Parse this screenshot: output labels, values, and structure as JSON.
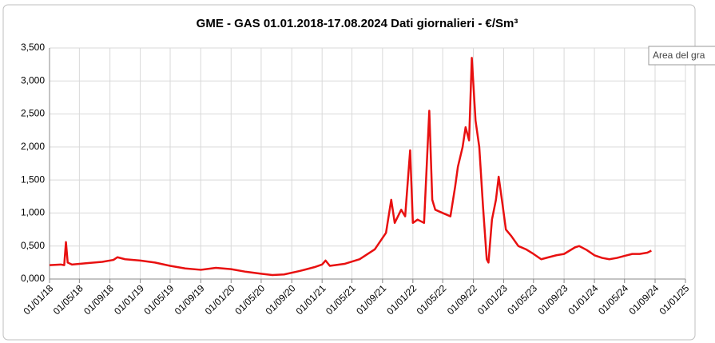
{
  "chart_data": {
    "type": "line",
    "title": "GME - GAS 01.01.2018-17.08.2024 Dati giornalieri - €/Sm³",
    "tooltip": "Area del gra",
    "color": "#e81010",
    "grid": true,
    "x": [
      "2018-01-01",
      "2018-02-15",
      "2018-03-01",
      "2018-03-08",
      "2018-03-15",
      "2018-04-01",
      "2018-06-01",
      "2018-08-01",
      "2018-09-15",
      "2018-10-01",
      "2018-11-01",
      "2019-01-01",
      "2019-03-01",
      "2019-05-01",
      "2019-07-01",
      "2019-09-01",
      "2019-11-01",
      "2020-01-01",
      "2020-03-01",
      "2020-05-01",
      "2020-06-15",
      "2020-08-01",
      "2020-10-01",
      "2020-12-01",
      "2021-01-01",
      "2021-01-15",
      "2021-02-01",
      "2021-04-01",
      "2021-06-01",
      "2021-08-01",
      "2021-09-15",
      "2021-10-06",
      "2021-10-20",
      "2021-11-15",
      "2021-12-01",
      "2021-12-21",
      "2022-01-01",
      "2022-01-20",
      "2022-02-15",
      "2022-03-08",
      "2022-03-20",
      "2022-04-01",
      "2022-05-01",
      "2022-06-01",
      "2022-06-20",
      "2022-07-01",
      "2022-07-20",
      "2022-08-01",
      "2022-08-15",
      "2022-08-26",
      "2022-09-10",
      "2022-09-25",
      "2022-10-10",
      "2022-10-25",
      "2022-11-01",
      "2022-11-15",
      "2022-12-01",
      "2022-12-12",
      "2022-12-25",
      "2023-01-10",
      "2023-02-01",
      "2023-03-01",
      "2023-04-01",
      "2023-05-01",
      "2023-06-01",
      "2023-07-01",
      "2023-08-01",
      "2023-09-01",
      "2023-10-15",
      "2023-11-01",
      "2023-12-01",
      "2024-01-01",
      "2024-02-01",
      "2024-03-01",
      "2024-04-01",
      "2024-05-01",
      "2024-06-01",
      "2024-07-01",
      "2024-08-01",
      "2024-08-17"
    ],
    "values": [
      0.21,
      0.22,
      0.21,
      0.56,
      0.25,
      0.22,
      0.24,
      0.26,
      0.29,
      0.33,
      0.3,
      0.28,
      0.25,
      0.2,
      0.16,
      0.14,
      0.17,
      0.15,
      0.11,
      0.08,
      0.06,
      0.07,
      0.12,
      0.18,
      0.22,
      0.28,
      0.2,
      0.23,
      0.3,
      0.45,
      0.7,
      1.2,
      0.85,
      1.05,
      0.95,
      1.95,
      0.85,
      0.9,
      0.85,
      2.55,
      1.2,
      1.05,
      1.0,
      0.95,
      1.4,
      1.7,
      2.0,
      2.3,
      2.1,
      3.35,
      2.4,
      2.0,
      1.1,
      0.3,
      0.25,
      0.9,
      1.2,
      1.55,
      1.2,
      0.75,
      0.65,
      0.5,
      0.45,
      0.38,
      0.3,
      0.33,
      0.36,
      0.38,
      0.48,
      0.5,
      0.44,
      0.36,
      0.32,
      0.3,
      0.32,
      0.35,
      0.38,
      0.38,
      0.4,
      0.43
    ],
    "ylim": [
      0,
      3.5
    ],
    "yticks": [
      {
        "value": 0,
        "label": "0,000"
      },
      {
        "value": 0.5,
        "label": "0,500"
      },
      {
        "value": 1,
        "label": "1,000"
      },
      {
        "value": 1.5,
        "label": "1,500"
      },
      {
        "value": 2,
        "label": "2,000"
      },
      {
        "value": 2.5,
        "label": "2,500"
      },
      {
        "value": 3,
        "label": "3,000"
      },
      {
        "value": 3.5,
        "label": "3,500"
      }
    ],
    "xlim": [
      "2018-01-01",
      "2025-01-01"
    ],
    "xticks": [
      {
        "value": "2018-01-01",
        "label": "01/01/18"
      },
      {
        "value": "2018-05-01",
        "label": "01/05/18"
      },
      {
        "value": "2018-09-01",
        "label": "01/09/18"
      },
      {
        "value": "2019-01-01",
        "label": "01/01/19"
      },
      {
        "value": "2019-05-01",
        "label": "01/05/19"
      },
      {
        "value": "2019-09-01",
        "label": "01/09/19"
      },
      {
        "value": "2020-01-01",
        "label": "01/01/20"
      },
      {
        "value": "2020-05-01",
        "label": "01/05/20"
      },
      {
        "value": "2020-09-01",
        "label": "01/09/20"
      },
      {
        "value": "2021-01-01",
        "label": "01/01/21"
      },
      {
        "value": "2021-05-01",
        "label": "01/05/21"
      },
      {
        "value": "2021-09-01",
        "label": "01/09/21"
      },
      {
        "value": "2022-01-01",
        "label": "01/01/22"
      },
      {
        "value": "2022-05-01",
        "label": "01/05/22"
      },
      {
        "value": "2022-09-01",
        "label": "01/09/22"
      },
      {
        "value": "2023-01-01",
        "label": "01/01/23"
      },
      {
        "value": "2023-05-01",
        "label": "01/05/23"
      },
      {
        "value": "2023-09-01",
        "label": "01/09/23"
      },
      {
        "value": "2024-01-01",
        "label": "01/01/24"
      },
      {
        "value": "2024-05-01",
        "label": "01/05/24"
      },
      {
        "value": "2024-09-01",
        "label": "01/09/24"
      },
      {
        "value": "2025-01-01",
        "label": "01/01/25"
      }
    ]
  }
}
